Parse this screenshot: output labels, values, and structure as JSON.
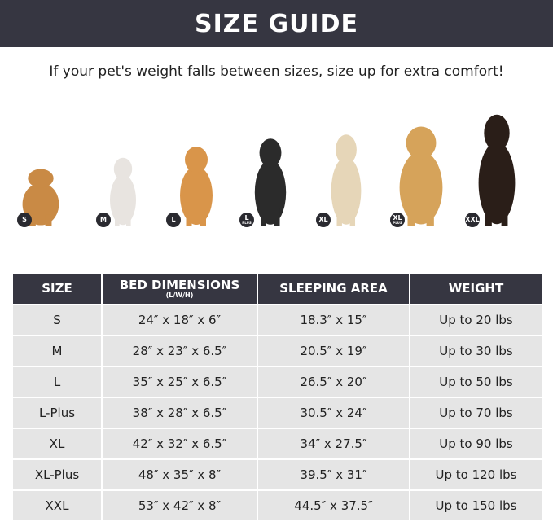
{
  "title": "SIZE GUIDE",
  "subtitle": "If your pet's weight falls between sizes, size up for extra comfort!",
  "dogs": [
    {
      "badge": "S",
      "plus": "",
      "color": "#c98a45"
    },
    {
      "badge": "M",
      "plus": "",
      "color": "#e8e4e0"
    },
    {
      "badge": "L",
      "plus": "",
      "color": "#d9954a"
    },
    {
      "badge": "L",
      "plus": "PLUS",
      "color": "#2b2b2b"
    },
    {
      "badge": "XL",
      "plus": "",
      "color": "#e6d6b8"
    },
    {
      "badge": "XL",
      "plus": "PLUS",
      "color": "#d6a35a"
    },
    {
      "badge": "XXL",
      "plus": "",
      "color": "#2a1e18"
    }
  ],
  "table": {
    "headers": [
      "SIZE",
      "BED DIMENSIONS",
      "SLEEPING AREA",
      "WEIGHT"
    ],
    "header_sub": "(L/W/H)",
    "rows": [
      [
        "S",
        "24″ x 18″ x 6″",
        "18.3″ x 15″",
        "Up to 20 lbs"
      ],
      [
        "M",
        "28″ x 23″ x 6.5″",
        "20.5″ x 19″",
        "Up to 30 lbs"
      ],
      [
        "L",
        "35″ x 25″ x 6.5″",
        "26.5″ x 20″",
        "Up to 50 lbs"
      ],
      [
        "L-Plus",
        "38″ x 28″ x 6.5″",
        "30.5″ x 24″",
        "Up to 70 lbs"
      ],
      [
        "XL",
        "42″ x 32″ x 6.5″",
        "34″ x 27.5″",
        "Up to 90 lbs"
      ],
      [
        "XL-Plus",
        "48″ x 35″ x 8″",
        "39.5″ x 31″",
        "Up to 120 lbs"
      ],
      [
        "XXL",
        "53″ x 42″ x 8″",
        "44.5″ x 37.5″",
        "Up to 150 lbs"
      ]
    ]
  }
}
